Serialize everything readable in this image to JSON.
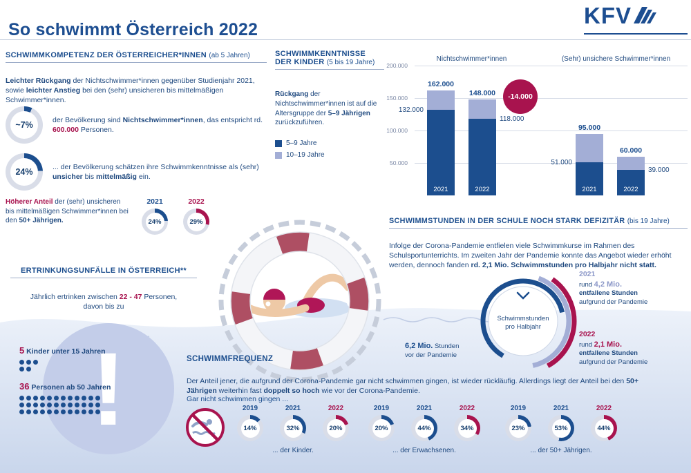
{
  "colors": {
    "blue": "#1c4e8e",
    "light": "#8d99c9",
    "crimson": "#a8134e",
    "track": "#d9dde8"
  },
  "header": {
    "title": "So schwimmt Österreich 2022",
    "logo_text": "KFV"
  },
  "kompetenz": {
    "heading": "SCHWIMMKOMPETENZ DER ÖSTERREICHER*INNEN",
    "heading_note": "(ab 5 Jahren)",
    "intro": {
      "b1": "Leichter Rückgang",
      "t1": " der Nichtschwimmer*innen gegenüber Studienjahr 2021, sowie ",
      "b2": "leichter Anstieg",
      "t2": " bei den (sehr) unsicheren bis mittelmäßigen Schwimmer*innen."
    },
    "stat1": {
      "value": "~7%",
      "pct": 7,
      "color": "blue",
      "t1": "der Bevölkerung sind ",
      "b1": "Nichtschwimmer*innen",
      "t2": ", das entspricht rd. ",
      "b2": "600.000",
      "t3": " Personen."
    },
    "stat2": {
      "value": "24%",
      "pct": 24,
      "color": "blue",
      "t1": "... der Bevölkerung schätzen ihre Schwimmkenntnisse als (sehr) ",
      "b1": "unsicher",
      "t2": " bis ",
      "b2": "mittelmäßig",
      "t3": " ein."
    },
    "hoeher": {
      "b1": "Höherer Anteil",
      "t1": " der (sehr) unsicheren bis mittelmäßigen Schwimmer*innen bei den ",
      "b2": "50+ Jährigen.",
      "donuts": [
        {
          "year": "2021",
          "label": "24%",
          "pct": 24,
          "color": "blue"
        },
        {
          "year": "2022",
          "label": "29%",
          "pct": 29,
          "color": "crimson"
        }
      ]
    }
  },
  "kenntnisse": {
    "heading": "SCHWIMMKENNTNISSE DER KINDER",
    "heading_note": "(5 bis 19 Jahre)",
    "b1": "Rückgang",
    "t1": " der Nichtschwimmer*innen ist auf die Altersgruppe der ",
    "b2": "5–9 Jährigen",
    "t2": " zurückzuführen.",
    "legend": [
      {
        "label": "5–9 Jahre",
        "color": "blue"
      },
      {
        "label": "10–19 Jahre",
        "color": "#a3aed6"
      }
    ]
  },
  "chart_data": [
    {
      "type": "bar",
      "stacked": true,
      "ylim": [
        0,
        200000
      ],
      "yticks": [
        "200.000",
        "150.000",
        "100.000",
        "50.000"
      ],
      "series_legend": [
        "5–9 Jahre",
        "10–19 Jahre"
      ],
      "group_titles": [
        "Nichtschwimmer*innen",
        "(Sehr) unsichere Schwimmer*innen"
      ],
      "badge": "-14.000",
      "groups": [
        {
          "title": "Nichtschwimmer*innen",
          "bars": [
            {
              "year": "2021",
              "total": 162000,
              "total_label": "162.000",
              "dark": 132000,
              "dark_label": "132.000",
              "side": "left"
            },
            {
              "year": "2022",
              "total": 148000,
              "total_label": "148.000",
              "dark": 118000,
              "dark_label": "118.000",
              "side": "right"
            }
          ]
        },
        {
          "title": "(Sehr) unsichere Schwimmer*innen",
          "bars": [
            {
              "year": "2021",
              "total": 95000,
              "total_label": "95.000",
              "dark": 51000,
              "dark_label": "51.000",
              "side": "left"
            },
            {
              "year": "2022",
              "total": 60000,
              "total_label": "60.000",
              "dark": 39000,
              "dark_label": "39.000",
              "side": "right"
            }
          ]
        }
      ]
    },
    {
      "type": "pie",
      "title": "Schwimmstunden pro Halbjahr",
      "values": {
        "stunden_vor_der_pandemie_mio": 6.2,
        "entfallene_stunden_2021_mio": 4.2,
        "entfallene_stunden_2022_mio": 2.1
      }
    },
    {
      "type": "pie",
      "title": "Gar nicht schwimmen gingen",
      "unit": "%",
      "categories": [
        "2019",
        "2021",
        "2022"
      ],
      "series": [
        {
          "name": "Kinder",
          "values": [
            14,
            32,
            20
          ]
        },
        {
          "name": "Erwachsene",
          "values": [
            20,
            44,
            34
          ]
        },
        {
          "name": "50+ Jährige",
          "values": [
            23,
            53,
            44
          ]
        }
      ]
    }
  ],
  "ertrinken": {
    "heading": "ERTRINKUNGSUNFÄLLE IN ÖSTERREICH**",
    "t1": "Jährlich ertrinken zwischen ",
    "b1": "22 - 47",
    "t2": " Personen,",
    "t3": "davon bis zu",
    "mark": "!",
    "items": [
      {
        "num": "5",
        "text": " Kinder unter 15 Jahren",
        "count": 5,
        "per_row": 3
      },
      {
        "num": "36",
        "text": " Personen ab 50 Jahren",
        "count": 36,
        "per_row": 12
      }
    ]
  },
  "stunden": {
    "heading": "SCHWIMMSTUNDEN IN DER SCHULE NOCH STARK DEFIZITÄR",
    "heading_note": "(bis 19 Jahre)",
    "t1": "Infolge der Corona-Pandemie entfielen viele Schwimmkurse im Rahmen des Schulsportunterrichts. Im zweiten Jahr der Pandemie konnte das Angebot wieder erhöht werden, dennoch fanden ",
    "b1": "rd. 2,1 Mio. Schwimmstunden pro Halbjahr nicht statt.",
    "circle_line1": "Schwimmstunden",
    "circle_line2": "pro Halbjahr",
    "left_value": "6,2 Mio.",
    "left_t1": " Stunden",
    "left_t2": "vor der Pandemie",
    "right": [
      {
        "year": "2021",
        "prefix": "rund ",
        "value": "4,2 Mio.",
        "b": "entfallene Stunden",
        "t": "aufgrund der Pandemie",
        "color": "light"
      },
      {
        "year": "2022",
        "prefix": "rund ",
        "value": "2,1 Mio.",
        "b": "entfallene Stunden",
        "t": "aufgrund der Pandemie",
        "color": "crimson"
      }
    ]
  },
  "frequenz": {
    "heading": "SCHWIMMFREQUENZ",
    "t1": "Der Anteil jener, die aufgrund der Corona-Pandemie gar nicht schwimmen gingen, ist wieder rückläufig. Allerdings liegt der Anteil bei den ",
    "b1": "50+ Jährigen",
    "t2": " weiterhin fast ",
    "b2": "doppelt so hoch",
    "t3": " wie vor der Corona-Pandemie.",
    "sub": "Gar nicht schwimmen gingen ...",
    "groups": [
      {
        "caption": "... der Kinder.",
        "donuts": [
          {
            "year": "2019",
            "label": "14%",
            "pct": 14,
            "color": "blue"
          },
          {
            "year": "2021",
            "label": "32%",
            "pct": 32,
            "color": "blue"
          },
          {
            "year": "2022",
            "label": "20%",
            "pct": 20,
            "color": "crimson"
          }
        ]
      },
      {
        "caption": "... der Erwachsenen.",
        "donuts": [
          {
            "year": "2019",
            "label": "20%",
            "pct": 20,
            "color": "blue"
          },
          {
            "year": "2021",
            "label": "44%",
            "pct": 44,
            "color": "blue"
          },
          {
            "year": "2022",
            "label": "34%",
            "pct": 34,
            "color": "crimson"
          }
        ]
      },
      {
        "caption": "... der 50+ Jährigen.",
        "donuts": [
          {
            "year": "2019",
            "label": "23%",
            "pct": 23,
            "color": "blue"
          },
          {
            "year": "2021",
            "label": "53%",
            "pct": 53,
            "color": "blue"
          },
          {
            "year": "2022",
            "label": "44%",
            "pct": 44,
            "color": "crimson"
          }
        ]
      }
    ]
  }
}
